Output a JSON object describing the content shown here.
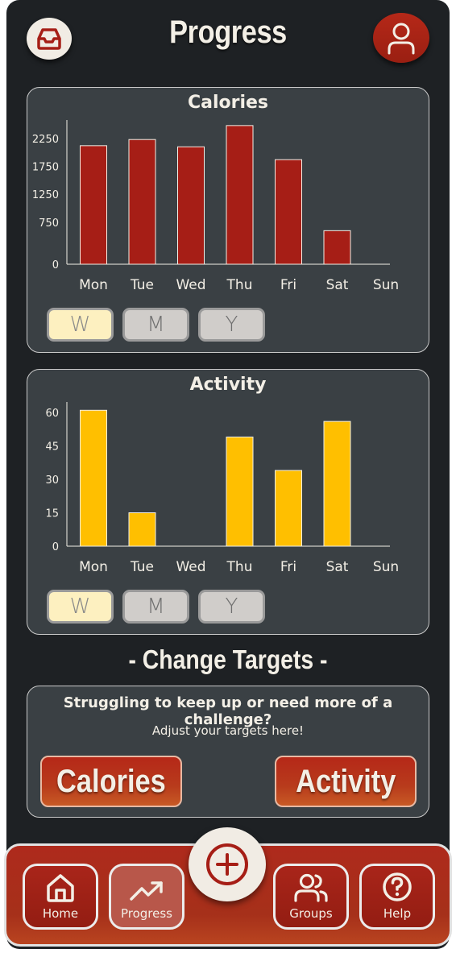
{
  "header": {
    "title": "Progress",
    "left_icon": "inbox-icon",
    "right_icon": "user-icon"
  },
  "calories_card": {
    "title": "Calories",
    "range_buttons": [
      "W",
      "M",
      "Y"
    ],
    "active_range": "W",
    "chart_data": {
      "type": "bar",
      "categories": [
        "Mon",
        "Tue",
        "Wed",
        "Thu",
        "Fri",
        "Sat",
        "Sun"
      ],
      "values": [
        2120,
        2230,
        2100,
        2480,
        1870,
        600,
        0
      ],
      "yticks": [
        0,
        750,
        1250,
        1750,
        2250
      ],
      "ylim": [
        0,
        2550
      ],
      "bar_color": "#a61e16"
    }
  },
  "activity_card": {
    "title": "Activity",
    "range_buttons": [
      "W",
      "M",
      "Y"
    ],
    "active_range": "W",
    "chart_data": {
      "type": "bar",
      "categories": [
        "Mon",
        "Tue",
        "Wed",
        "Thu",
        "Fri",
        "Sat",
        "Sun"
      ],
      "values": [
        61,
        15,
        0,
        49,
        34,
        56,
        0
      ],
      "yticks": [
        0,
        15,
        30,
        45,
        60
      ],
      "ylim": [
        0,
        64
      ],
      "bar_color": "#ffbf00"
    }
  },
  "targets": {
    "section_title": "- Change Targets -",
    "question": "Struggling to keep up or need more of a challenge?",
    "subtitle": "Adjust your targets here!",
    "calories_button": "Calories",
    "activity_button": "Activity"
  },
  "nav": {
    "items": [
      {
        "label": "Home",
        "icon": "home-icon"
      },
      {
        "label": "Progress",
        "icon": "trending-up-icon"
      },
      {
        "label": "Groups",
        "icon": "users-icon"
      },
      {
        "label": "Help",
        "icon": "help-icon"
      }
    ],
    "active": "Progress",
    "add_icon": "plus-circle-icon"
  },
  "colors": {
    "accent_red": "#a61e16",
    "accent_yellow": "#ffbf00",
    "background": "#1e2124",
    "card": "#3a4044"
  }
}
